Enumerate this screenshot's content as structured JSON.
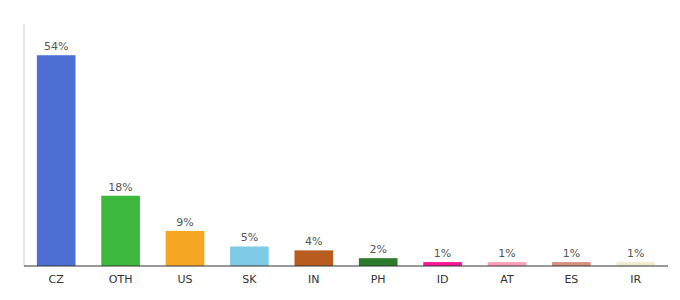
{
  "chart_data": {
    "type": "bar",
    "categories": [
      "CZ",
      "OTH",
      "US",
      "SK",
      "IN",
      "PH",
      "ID",
      "AT",
      "ES",
      "IR"
    ],
    "values": [
      54,
      18,
      9,
      5,
      4,
      2,
      1,
      1,
      1,
      1
    ],
    "value_labels": [
      "54%",
      "18%",
      "9%",
      "5%",
      "4%",
      "2%",
      "1%",
      "1%",
      "1%",
      "1%"
    ],
    "colors": [
      "#4d6fd4",
      "#3cb83c",
      "#f5a623",
      "#7ecbe8",
      "#b85c20",
      "#2a7a2a",
      "#ff1493",
      "#ff9eb5",
      "#d4907a",
      "#f0ecd0"
    ],
    "ylim": [
      0,
      62
    ],
    "yticks": [],
    "grid": false,
    "data_labels": true,
    "tick_labels": "x"
  }
}
